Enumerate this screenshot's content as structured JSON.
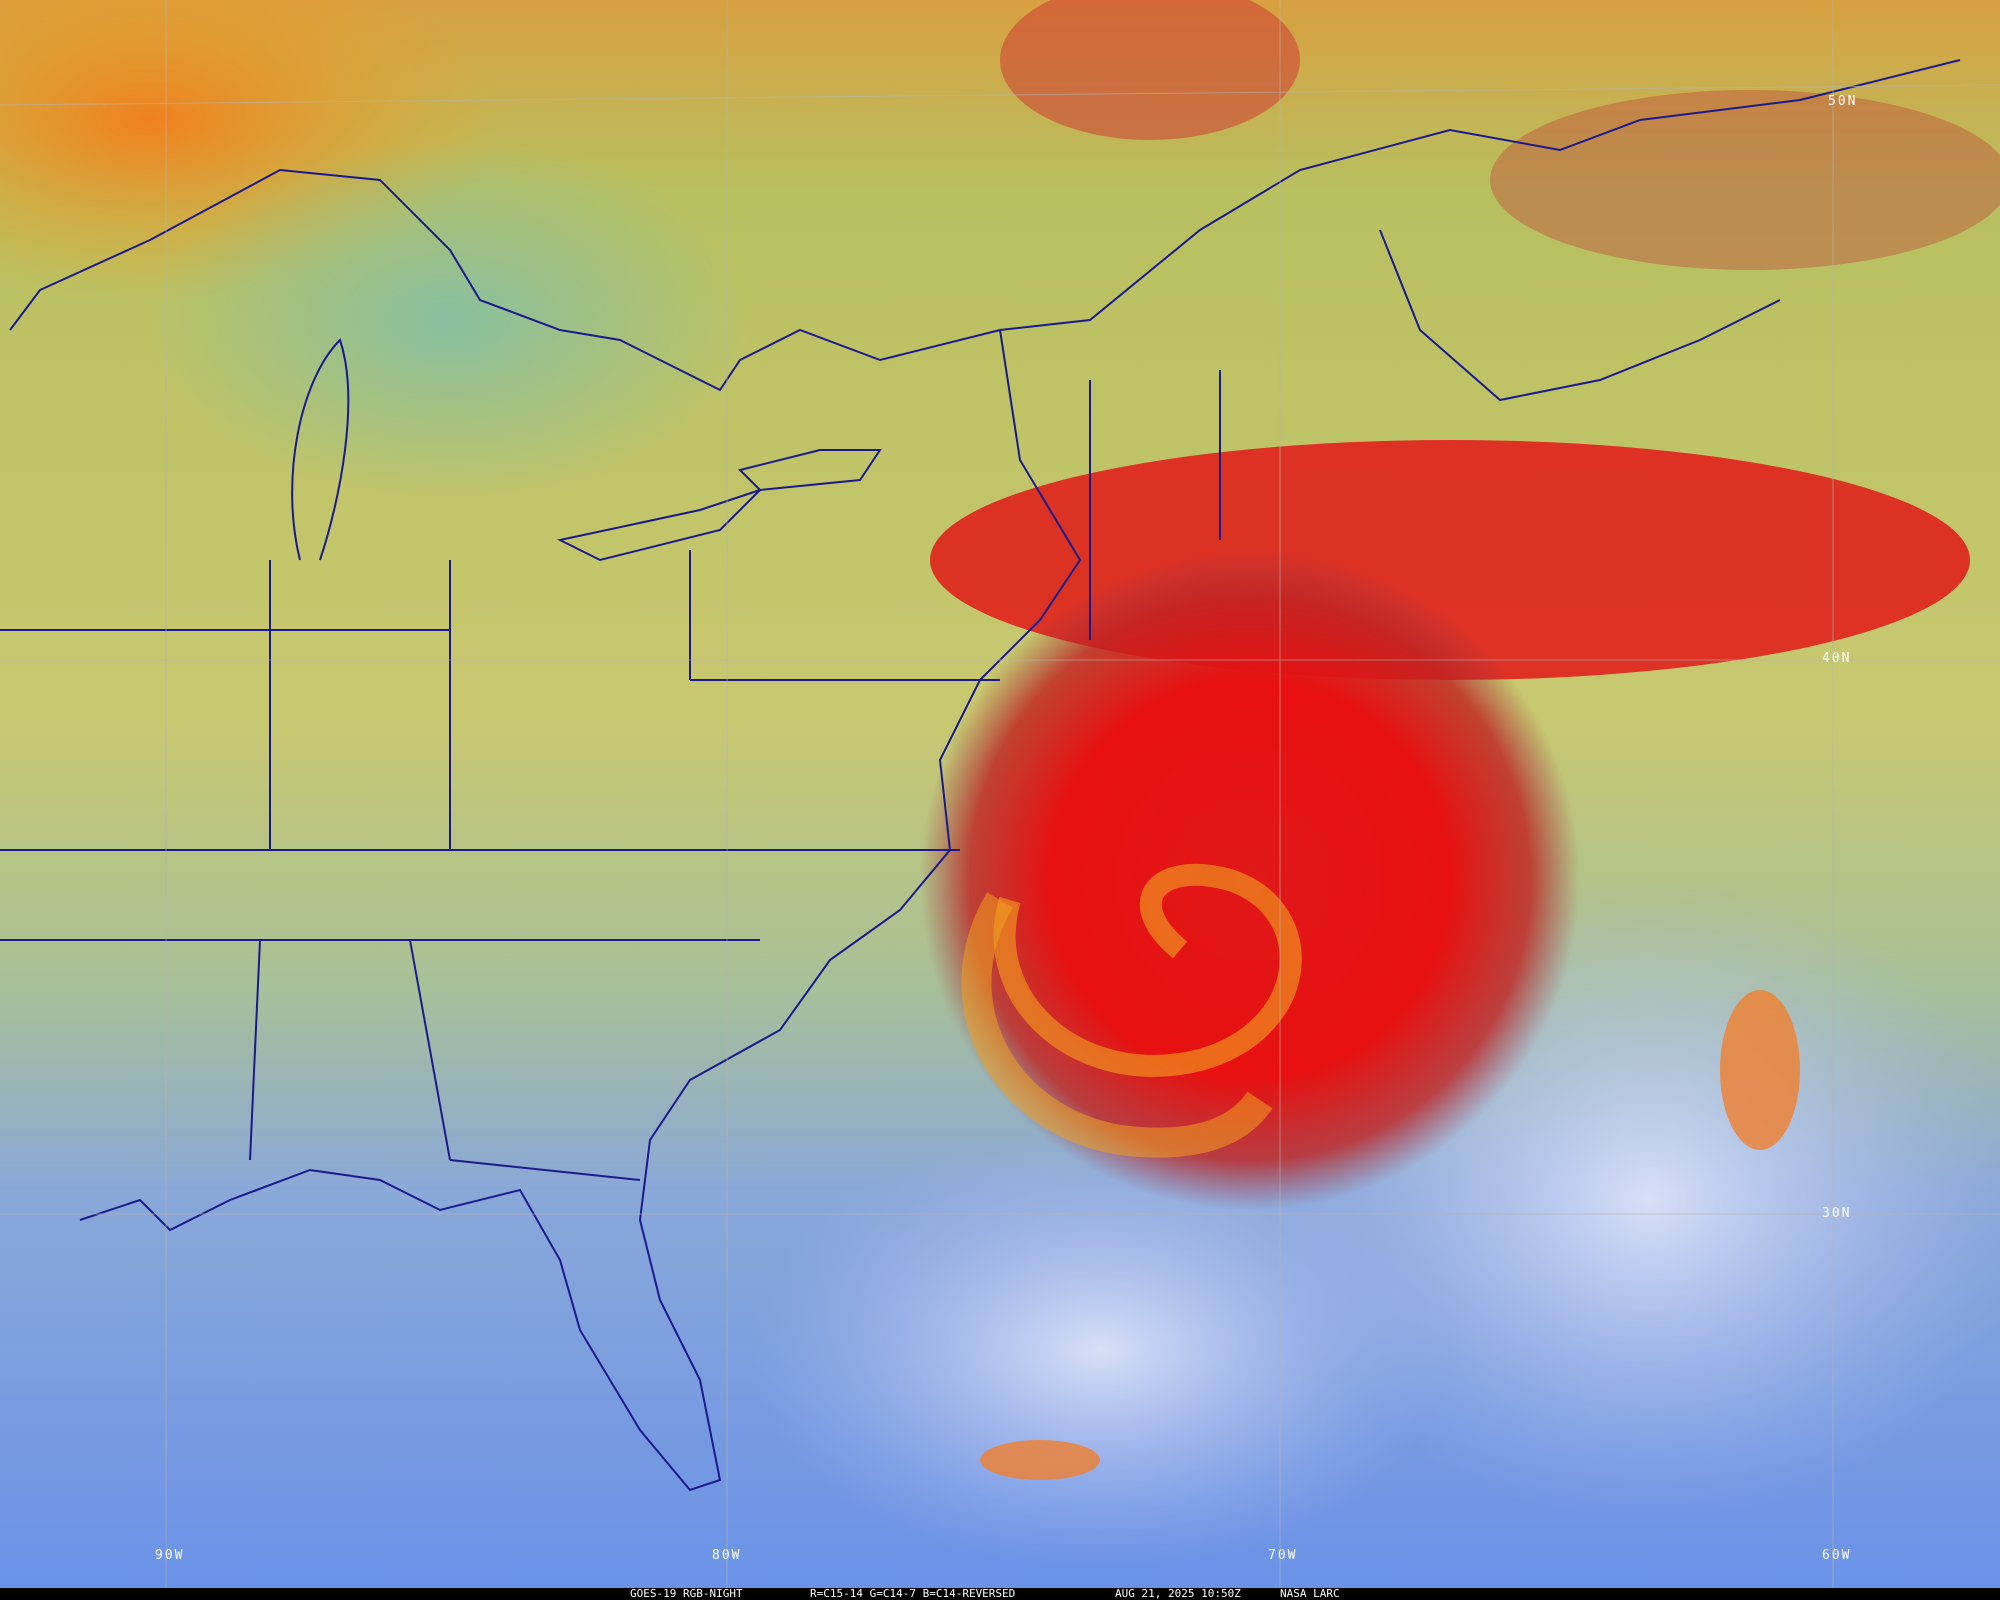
{
  "caption": {
    "satellite": "GOES-19 RGB-NIGHT",
    "channels": "R=C15-14 G=C14-7 B=C14-REVERSED",
    "datetime": "AUG 21, 2025 10:50Z",
    "source": "NASA LARC"
  },
  "latitude_labels": [
    "50N",
    "40N",
    "30N"
  ],
  "longitude_labels": [
    "90W",
    "80W",
    "70W",
    "60W"
  ],
  "colors": {
    "land": "#c6c46a",
    "ocean_clear": "#7a9ee0",
    "high_cloud": "#e81010",
    "mid_cloud": "#f0a020",
    "borders": "#1a1a8a",
    "grid": "#b0b0b0"
  }
}
